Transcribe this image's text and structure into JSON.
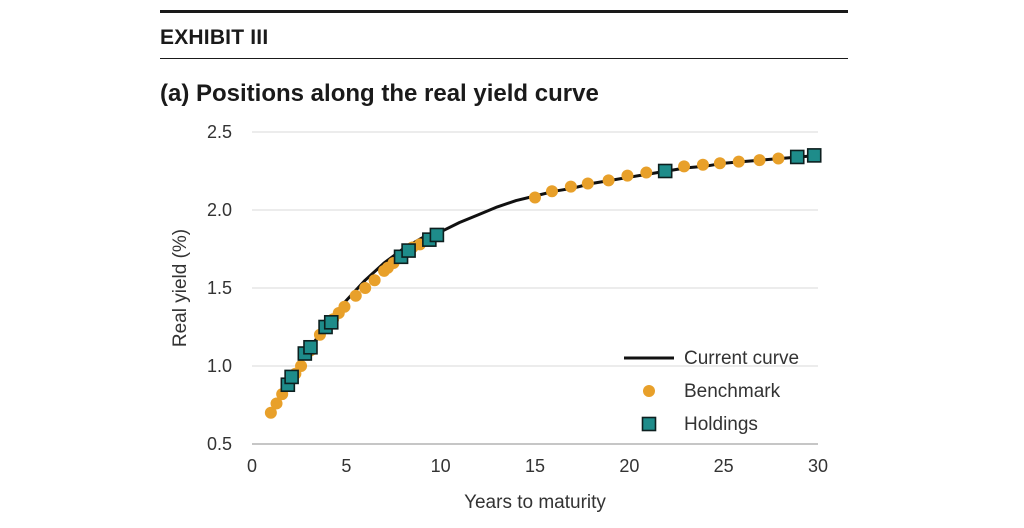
{
  "exhibit_label": "EXHIBIT III",
  "chart_data": {
    "type": "scatter",
    "title": "(a) Positions along the real yield curve",
    "xlabel": "Years to maturity",
    "ylabel": "Real yield (%)",
    "xlim": [
      0,
      30
    ],
    "ylim": [
      0.5,
      2.5
    ],
    "x_ticks": [
      0,
      5,
      10,
      15,
      20,
      25,
      30
    ],
    "y_ticks": [
      0.5,
      1.0,
      1.5,
      2.0,
      2.5
    ],
    "x_tick_labels": [
      "0",
      "5",
      "10",
      "15",
      "20",
      "25",
      "30"
    ],
    "y_tick_labels": [
      "0.5",
      "1.0",
      "1.5",
      "2.0",
      "2.5"
    ],
    "grid": "horizontal",
    "legend_position": "lower-right",
    "series": [
      {
        "name": "Current curve",
        "kind": "line",
        "color": "#111111",
        "x": [
          1,
          1.5,
          2,
          2.5,
          3,
          3.5,
          4,
          4.5,
          5,
          6,
          7,
          8,
          9,
          10,
          11,
          12,
          13,
          14,
          15,
          16,
          17,
          18,
          19,
          20,
          21,
          22,
          23,
          24,
          25,
          26,
          27,
          28,
          29,
          30
        ],
        "y": [
          0.7,
          0.81,
          0.91,
          1.01,
          1.1,
          1.19,
          1.27,
          1.35,
          1.42,
          1.55,
          1.66,
          1.75,
          1.82,
          1.86,
          1.92,
          1.97,
          2.02,
          2.06,
          2.09,
          2.12,
          2.14,
          2.17,
          2.19,
          2.21,
          2.23,
          2.25,
          2.27,
          2.28,
          2.3,
          2.31,
          2.32,
          2.33,
          2.34,
          2.35
        ]
      },
      {
        "name": "Benchmark",
        "kind": "circle",
        "color": "#E8A02A",
        "x": [
          1.0,
          1.3,
          1.6,
          2.3,
          2.6,
          3.1,
          3.6,
          4.3,
          4.6,
          4.9,
          5.5,
          6.0,
          6.5,
          7.0,
          7.2,
          7.5,
          8.5,
          8.9,
          15.0,
          15.9,
          16.9,
          17.8,
          18.9,
          19.9,
          20.9,
          22.9,
          23.9,
          24.8,
          25.8,
          26.9,
          27.9
        ],
        "y": [
          0.7,
          0.76,
          0.82,
          0.95,
          1.0,
          1.1,
          1.2,
          1.3,
          1.34,
          1.38,
          1.45,
          1.5,
          1.55,
          1.61,
          1.63,
          1.66,
          1.76,
          1.78,
          2.08,
          2.12,
          2.15,
          2.17,
          2.19,
          2.22,
          2.24,
          2.28,
          2.29,
          2.3,
          2.31,
          2.32,
          2.33
        ]
      },
      {
        "name": "Holdings",
        "kind": "square",
        "color": "#1E8C8A",
        "x": [
          1.9,
          2.1,
          2.8,
          3.1,
          3.9,
          4.2,
          7.9,
          8.3,
          9.4,
          9.8,
          21.9,
          28.9,
          29.8
        ],
        "y": [
          0.88,
          0.93,
          1.08,
          1.12,
          1.25,
          1.28,
          1.7,
          1.74,
          1.81,
          1.84,
          2.25,
          2.34,
          2.35
        ]
      }
    ]
  }
}
